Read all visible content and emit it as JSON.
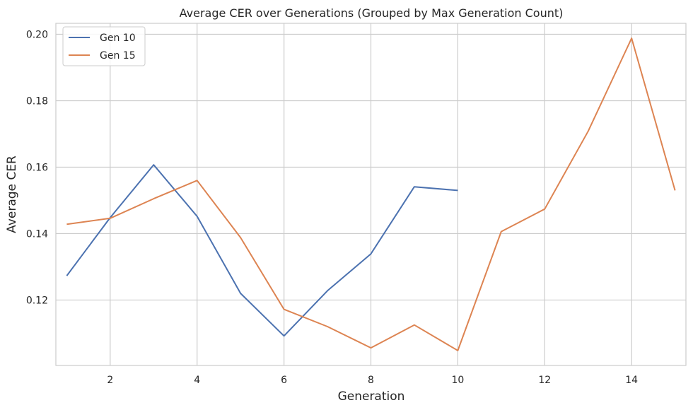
{
  "chart_data": {
    "type": "line",
    "title": "Average CER over Generations (Grouped by Max Generation Count)",
    "xlabel": "Generation",
    "ylabel": "Average CER",
    "xlim": [
      0.75,
      15.25
    ],
    "ylim": [
      0.1003,
      0.2033
    ],
    "xticks": [
      2,
      4,
      6,
      8,
      10,
      12,
      14
    ],
    "yticks": [
      0.12,
      0.14,
      0.16,
      0.18,
      0.2
    ],
    "grid": true,
    "legend": "top-left",
    "series": [
      {
        "name": "Gen 10",
        "color": "#4c72b0",
        "x": [
          1,
          2,
          3,
          4,
          5,
          6,
          7,
          8,
          9,
          10
        ],
        "values": [
          0.1273,
          0.1448,
          0.1607,
          0.1452,
          0.122,
          0.1092,
          0.1228,
          0.1339,
          0.1541,
          0.153
        ]
      },
      {
        "name": "Gen 15",
        "color": "#dd8452",
        "x": [
          1,
          2,
          3,
          4,
          5,
          6,
          7,
          8,
          9,
          10,
          11,
          12,
          13,
          14,
          15
        ],
        "values": [
          0.1428,
          0.1446,
          0.1505,
          0.156,
          0.1388,
          0.1172,
          0.112,
          0.1056,
          0.1125,
          0.1048,
          0.1406,
          0.1474,
          0.1708,
          0.1988,
          0.153
        ]
      }
    ]
  }
}
